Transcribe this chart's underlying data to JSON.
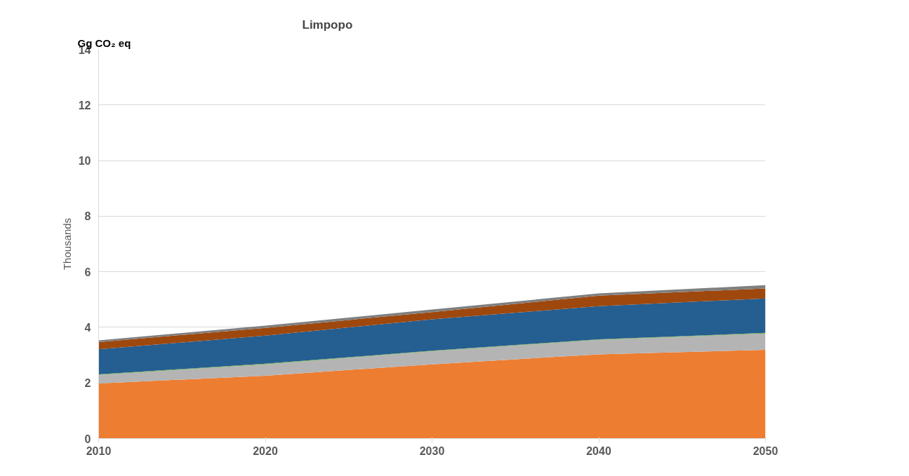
{
  "chart_data": {
    "type": "area",
    "title": "Limpopo",
    "ylabel": "Thousands",
    "annotations": [
      "Gg CO₂ eq"
    ],
    "x": [
      2010,
      2020,
      2030,
      2040,
      2050
    ],
    "stacked": true,
    "series": [
      {
        "color": "#ed7d31",
        "values": [
          1.98,
          2.26,
          2.67,
          3.03,
          3.19
        ]
      },
      {
        "color": "#b4b4b4",
        "values": [
          0.31,
          0.41,
          0.47,
          0.52,
          0.59
        ]
      },
      {
        "color": "#70ad47",
        "values": [
          0.02,
          0.02,
          0.02,
          0.02,
          0.02
        ]
      },
      {
        "color": "#255e91",
        "values": [
          0.9,
          1.01,
          1.13,
          1.19,
          1.24
        ]
      },
      {
        "color": "#9e480e",
        "values": [
          0.26,
          0.28,
          0.26,
          0.38,
          0.36
        ]
      },
      {
        "color": "#7f7f7f",
        "values": [
          0.06,
          0.08,
          0.09,
          0.08,
          0.12
        ]
      }
    ],
    "xlim": [
      2010,
      2050
    ],
    "xticks": [
      2010,
      2020,
      2030,
      2040,
      2050
    ],
    "ylim": [
      0,
      14
    ],
    "yticks": [
      0,
      2,
      4,
      6,
      8,
      10,
      12,
      14
    ],
    "grid": "y"
  }
}
